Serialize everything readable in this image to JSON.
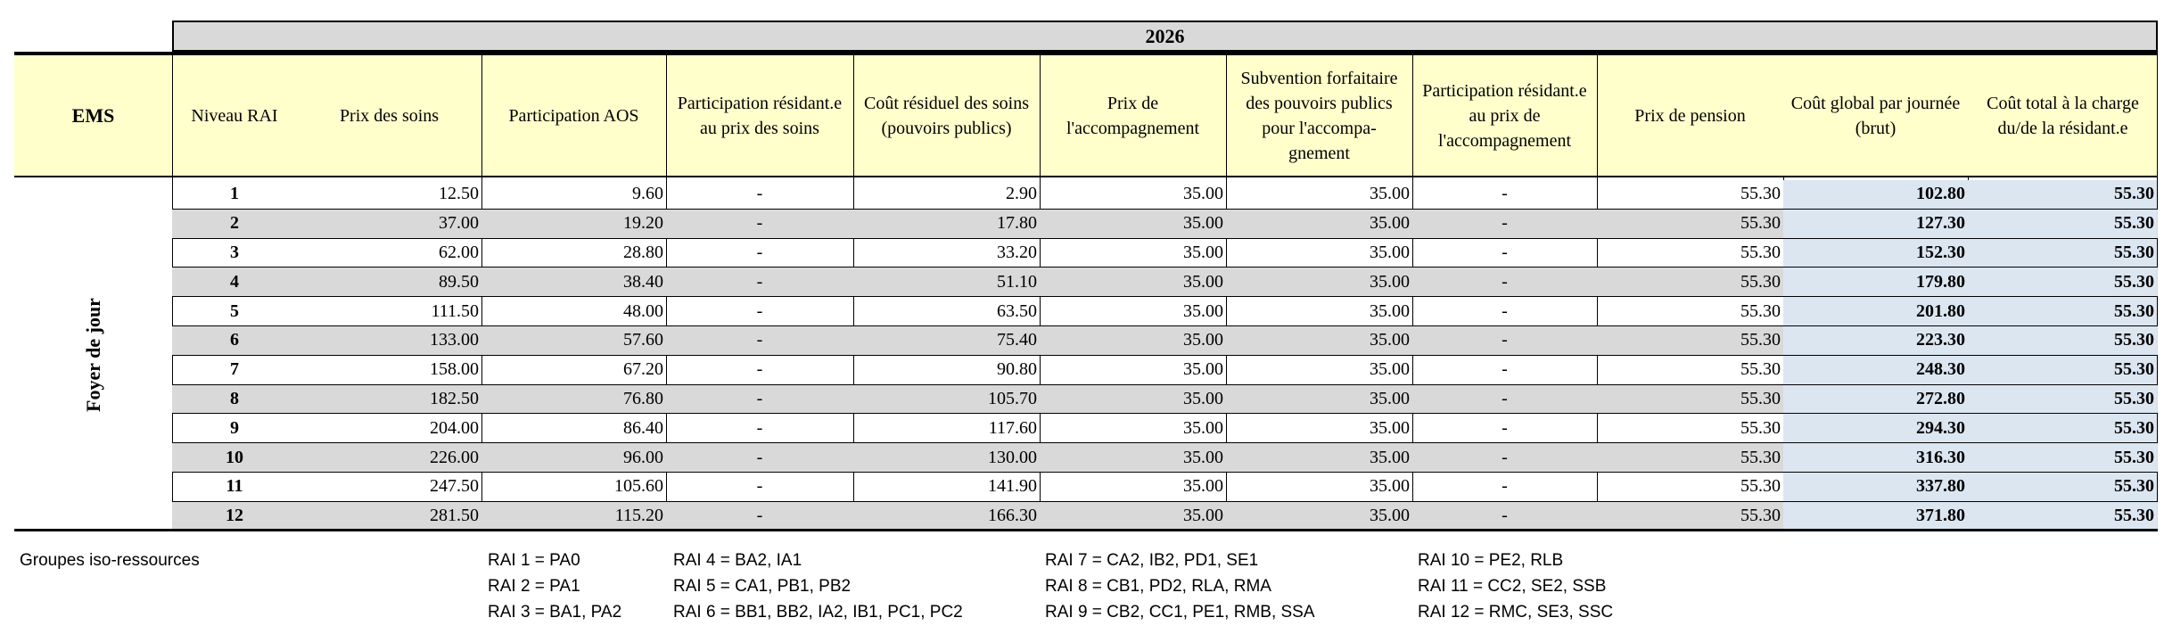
{
  "year": "2026",
  "headers": {
    "ems": "EMS",
    "niveau_rai": "Niveau RAI",
    "prix_soins": "Prix des soins",
    "participation_aos": "Participation AOS",
    "participation_residant_soins": "Participation résidant.e au prix des soins",
    "cout_residuel": "Coût résiduel des soins (pouvoirs publics)",
    "prix_accompagnement": "Prix de l'accompagnement",
    "subvention": "Subvention forfaitaire des pouvoirs publics pour l'accompa-gnement",
    "participation_residant_accomp": "Participation résidant.e au prix de l'accompagnement",
    "prix_pension": "Prix de pension",
    "cout_global": "Coût global par journée (brut)",
    "cout_total": "Coût total à la charge du/de la résidant.e"
  },
  "ems_category": "Foyer de jour",
  "rows": [
    {
      "rai": "1",
      "soins": "12.50",
      "aos": "9.60",
      "part_soins": "-",
      "residuel": "2.90",
      "accomp": "35.00",
      "subv": "35.00",
      "part_accomp": "-",
      "pension": "55.30",
      "global": "102.80",
      "total": "55.30"
    },
    {
      "rai": "2",
      "soins": "37.00",
      "aos": "19.20",
      "part_soins": "-",
      "residuel": "17.80",
      "accomp": "35.00",
      "subv": "35.00",
      "part_accomp": "-",
      "pension": "55.30",
      "global": "127.30",
      "total": "55.30"
    },
    {
      "rai": "3",
      "soins": "62.00",
      "aos": "28.80",
      "part_soins": "-",
      "residuel": "33.20",
      "accomp": "35.00",
      "subv": "35.00",
      "part_accomp": "-",
      "pension": "55.30",
      "global": "152.30",
      "total": "55.30"
    },
    {
      "rai": "4",
      "soins": "89.50",
      "aos": "38.40",
      "part_soins": "-",
      "residuel": "51.10",
      "accomp": "35.00",
      "subv": "35.00",
      "part_accomp": "-",
      "pension": "55.30",
      "global": "179.80",
      "total": "55.30"
    },
    {
      "rai": "5",
      "soins": "111.50",
      "aos": "48.00",
      "part_soins": "-",
      "residuel": "63.50",
      "accomp": "35.00",
      "subv": "35.00",
      "part_accomp": "-",
      "pension": "55.30",
      "global": "201.80",
      "total": "55.30"
    },
    {
      "rai": "6",
      "soins": "133.00",
      "aos": "57.60",
      "part_soins": "-",
      "residuel": "75.40",
      "accomp": "35.00",
      "subv": "35.00",
      "part_accomp": "-",
      "pension": "55.30",
      "global": "223.30",
      "total": "55.30"
    },
    {
      "rai": "7",
      "soins": "158.00",
      "aos": "67.20",
      "part_soins": "-",
      "residuel": "90.80",
      "accomp": "35.00",
      "subv": "35.00",
      "part_accomp": "-",
      "pension": "55.30",
      "global": "248.30",
      "total": "55.30"
    },
    {
      "rai": "8",
      "soins": "182.50",
      "aos": "76.80",
      "part_soins": "-",
      "residuel": "105.70",
      "accomp": "35.00",
      "subv": "35.00",
      "part_accomp": "-",
      "pension": "55.30",
      "global": "272.80",
      "total": "55.30"
    },
    {
      "rai": "9",
      "soins": "204.00",
      "aos": "86.40",
      "part_soins": "-",
      "residuel": "117.60",
      "accomp": "35.00",
      "subv": "35.00",
      "part_accomp": "-",
      "pension": "55.30",
      "global": "294.30",
      "total": "55.30"
    },
    {
      "rai": "10",
      "soins": "226.00",
      "aos": "96.00",
      "part_soins": "-",
      "residuel": "130.00",
      "accomp": "35.00",
      "subv": "35.00",
      "part_accomp": "-",
      "pension": "55.30",
      "global": "316.30",
      "total": "55.30"
    },
    {
      "rai": "11",
      "soins": "247.50",
      "aos": "105.60",
      "part_soins": "-",
      "residuel": "141.90",
      "accomp": "35.00",
      "subv": "35.00",
      "part_accomp": "-",
      "pension": "55.30",
      "global": "337.80",
      "total": "55.30"
    },
    {
      "rai": "12",
      "soins": "281.50",
      "aos": "115.20",
      "part_soins": "-",
      "residuel": "166.30",
      "accomp": "35.00",
      "subv": "35.00",
      "part_accomp": "-",
      "pension": "55.30",
      "global": "371.80",
      "total": "55.30"
    }
  ],
  "legend": {
    "title": "Groupes iso-ressources",
    "col1": [
      "RAI 1 = PA0",
      "RAI 2 = PA1",
      "RAI 3 = BA1, PA2"
    ],
    "col2": [
      "RAI 4 = BA2, IA1",
      "RAI 5 = CA1, PB1, PB2",
      "RAI 6 = BB1, BB2, IA2, IB1, PC1, PC2"
    ],
    "col3": [
      "RAI 7 = CA2, IB2, PD1, SE1",
      "RAI 8 = CB1, PD2, RLA, RMA",
      "RAI 9 = CB2, CC1, PE1, RMB, SSA"
    ],
    "col4": [
      "RAI 10 = PE2, RLB",
      "RAI 11 = CC2, SE2, SSB",
      "RAI 12 = RMC, SE3, SSC"
    ]
  }
}
